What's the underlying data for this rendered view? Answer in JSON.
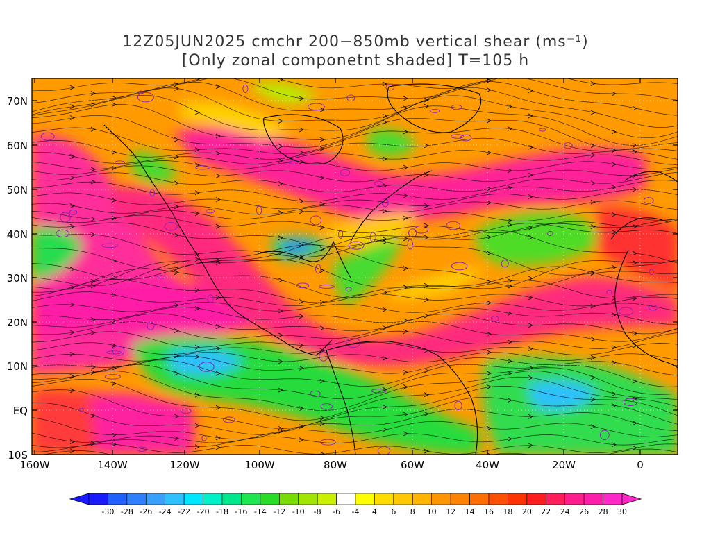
{
  "title": {
    "line1": "12Z05JUN2025 cmchr 200−850mb vertical shear (ms⁻¹)",
    "line2": "[Only zonal componetnt shaded] T=105 h"
  },
  "map": {
    "lat_labels": [
      "70N",
      "60N",
      "50N",
      "40N",
      "30N",
      "20N",
      "10N",
      "EQ",
      "10S"
    ],
    "lon_labels": [
      "160W",
      "140W",
      "120W",
      "100W",
      "80W",
      "60W",
      "40W",
      "20W",
      "0"
    ]
  },
  "colorbar": {
    "labels": [
      "-30",
      "-28",
      "-26",
      "-24",
      "-22",
      "-20",
      "-18",
      "-16",
      "-14",
      "-12",
      "-10",
      "-8",
      "-6",
      "-4",
      "4",
      "6",
      "8",
      "10",
      "12",
      "14",
      "16",
      "18",
      "20",
      "22",
      "24",
      "26",
      "28",
      "30"
    ],
    "colors": [
      "#1a1aff",
      "#2060ff",
      "#2e80ff",
      "#3aa0ff",
      "#2ec0ff",
      "#00e6ff",
      "#00f0c8",
      "#00e68c",
      "#1ee650",
      "#28dc28",
      "#78dc00",
      "#a0e600",
      "#c8f000",
      "#ffffff",
      "#ffff00",
      "#ffdc00",
      "#ffc800",
      "#ffb400",
      "#ff9600",
      "#ff8200",
      "#ff6e00",
      "#ff5000",
      "#ff3200",
      "#ff1e1e",
      "#ff1e5a",
      "#ff1e8c",
      "#ff1eaa",
      "#ff28c8"
    ]
  }
}
